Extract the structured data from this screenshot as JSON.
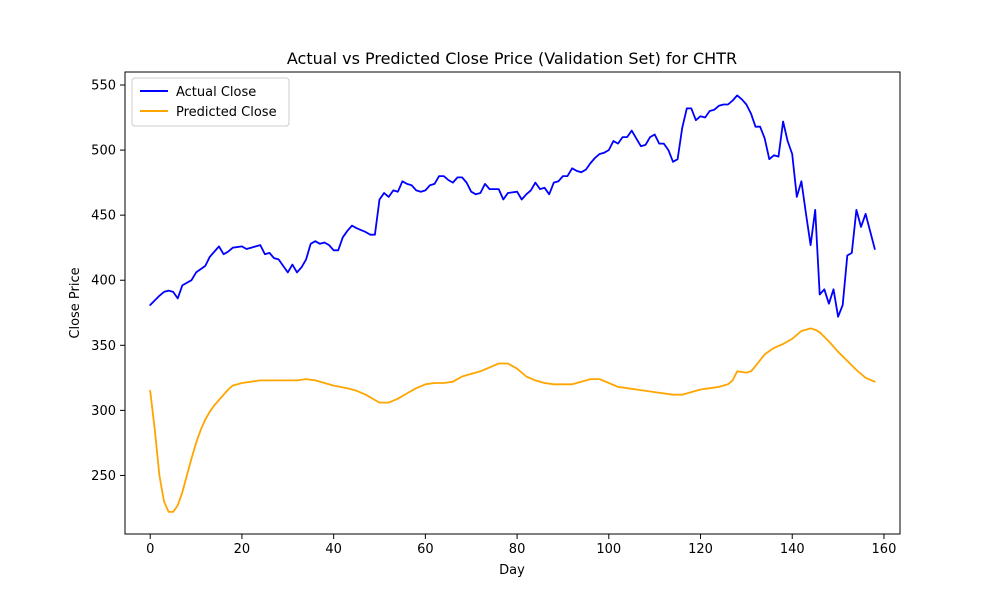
{
  "chart_data": {
    "type": "line",
    "title": "Actual vs Predicted Close Price (Validation Set) for CHTR",
    "xlabel": "Day",
    "ylabel": "Close Price",
    "xlim": [
      -5.5,
      163.5
    ],
    "ylim": [
      205,
      560
    ],
    "xticks": [
      "0",
      "20",
      "40",
      "60",
      "80",
      "100",
      "120",
      "140",
      "160"
    ],
    "yticks": [
      "250",
      "300",
      "350",
      "400",
      "450",
      "500",
      "550"
    ],
    "grid": false,
    "legend_position": "top-left",
    "series": [
      {
        "name": "Actual Close",
        "color": "#0000ff",
        "points": [
          [
            0,
            381
          ],
          [
            2,
            388
          ],
          [
            3,
            391
          ],
          [
            4,
            392
          ],
          [
            5,
            391
          ],
          [
            6,
            386
          ],
          [
            7,
            396
          ],
          [
            9,
            400
          ],
          [
            10,
            406
          ],
          [
            12,
            411
          ],
          [
            13,
            418
          ],
          [
            15,
            426
          ],
          [
            16,
            420
          ],
          [
            17,
            422
          ],
          [
            18,
            425
          ],
          [
            20,
            426
          ],
          [
            21,
            424
          ],
          [
            22,
            425
          ],
          [
            23,
            426
          ],
          [
            24,
            427
          ],
          [
            25,
            420
          ],
          [
            26,
            421
          ],
          [
            27,
            417
          ],
          [
            28,
            416
          ],
          [
            29,
            411
          ],
          [
            30,
            406
          ],
          [
            31,
            412
          ],
          [
            32,
            406
          ],
          [
            33,
            410
          ],
          [
            34,
            416
          ],
          [
            35,
            428
          ],
          [
            36,
            430
          ],
          [
            37,
            428
          ],
          [
            38,
            429
          ],
          [
            39,
            427
          ],
          [
            40,
            423
          ],
          [
            41,
            423
          ],
          [
            42,
            433
          ],
          [
            43,
            438
          ],
          [
            44,
            442
          ],
          [
            45,
            440
          ],
          [
            47,
            437
          ],
          [
            48,
            435
          ],
          [
            49,
            435
          ],
          [
            50,
            462
          ],
          [
            51,
            467
          ],
          [
            52,
            464
          ],
          [
            53,
            469
          ],
          [
            54,
            468
          ],
          [
            55,
            476
          ],
          [
            56,
            474
          ],
          [
            57,
            473
          ],
          [
            58,
            469
          ],
          [
            59,
            468
          ],
          [
            60,
            469
          ],
          [
            61,
            473
          ],
          [
            62,
            474
          ],
          [
            63,
            480
          ],
          [
            64,
            480
          ],
          [
            65,
            477
          ],
          [
            66,
            475
          ],
          [
            67,
            479
          ],
          [
            68,
            479
          ],
          [
            69,
            475
          ],
          [
            70,
            468
          ],
          [
            71,
            466
          ],
          [
            72,
            467
          ],
          [
            73,
            474
          ],
          [
            74,
            470
          ],
          [
            76,
            470
          ],
          [
            77,
            462
          ],
          [
            78,
            467
          ],
          [
            80,
            468
          ],
          [
            81,
            462
          ],
          [
            82,
            466
          ],
          [
            83,
            469
          ],
          [
            84,
            475
          ],
          [
            85,
            470
          ],
          [
            86,
            471
          ],
          [
            87,
            466
          ],
          [
            88,
            475
          ],
          [
            89,
            476
          ],
          [
            90,
            480
          ],
          [
            91,
            480
          ],
          [
            92,
            486
          ],
          [
            93,
            484
          ],
          [
            94,
            483
          ],
          [
            95,
            485
          ],
          [
            96,
            490
          ],
          [
            97,
            494
          ],
          [
            98,
            497
          ],
          [
            99,
            498
          ],
          [
            100,
            500
          ],
          [
            101,
            507
          ],
          [
            102,
            505
          ],
          [
            103,
            510
          ],
          [
            104,
            510
          ],
          [
            105,
            515
          ],
          [
            106,
            509
          ],
          [
            107,
            503
          ],
          [
            108,
            504
          ],
          [
            109,
            510
          ],
          [
            110,
            512
          ],
          [
            111,
            505
          ],
          [
            112,
            505
          ],
          [
            113,
            500
          ],
          [
            114,
            491
          ],
          [
            115,
            493
          ],
          [
            116,
            517
          ],
          [
            117,
            532
          ],
          [
            118,
            532
          ],
          [
            119,
            523
          ],
          [
            120,
            526
          ],
          [
            121,
            525
          ],
          [
            122,
            530
          ],
          [
            123,
            531
          ],
          [
            124,
            534
          ],
          [
            125,
            535
          ],
          [
            126,
            535
          ],
          [
            127,
            538
          ],
          [
            128,
            542
          ],
          [
            129,
            539
          ],
          [
            130,
            535
          ],
          [
            131,
            528
          ],
          [
            132,
            518
          ],
          [
            133,
            518
          ],
          [
            134,
            509
          ],
          [
            135,
            493
          ],
          [
            136,
            496
          ],
          [
            137,
            495
          ],
          [
            138,
            522
          ],
          [
            139,
            507
          ],
          [
            140,
            497
          ],
          [
            141,
            464
          ],
          [
            142,
            476
          ],
          [
            143,
            451
          ],
          [
            144,
            427
          ],
          [
            145,
            454
          ],
          [
            146,
            389
          ],
          [
            147,
            393
          ],
          [
            148,
            382
          ],
          [
            149,
            393
          ],
          [
            150,
            372
          ],
          [
            151,
            381
          ],
          [
            152,
            419
          ],
          [
            153,
            421
          ],
          [
            154,
            454
          ],
          [
            155,
            441
          ],
          [
            156,
            451
          ],
          [
            158,
            424
          ]
        ]
      },
      {
        "name": "Predicted Close",
        "color": "#ffa500",
        "points": [
          [
            0,
            315
          ],
          [
            1,
            285
          ],
          [
            2,
            250
          ],
          [
            3,
            230
          ],
          [
            4,
            222
          ],
          [
            5,
            222
          ],
          [
            6,
            227
          ],
          [
            7,
            237
          ],
          [
            8,
            250
          ],
          [
            9,
            263
          ],
          [
            10,
            275
          ],
          [
            11,
            285
          ],
          [
            12,
            293
          ],
          [
            13,
            299
          ],
          [
            14,
            304
          ],
          [
            15,
            308
          ],
          [
            16,
            312
          ],
          [
            17,
            316
          ],
          [
            18,
            319
          ],
          [
            20,
            321
          ],
          [
            22,
            322
          ],
          [
            24,
            323
          ],
          [
            26,
            323
          ],
          [
            28,
            323
          ],
          [
            30,
            323
          ],
          [
            32,
            323
          ],
          [
            34,
            324
          ],
          [
            36,
            323
          ],
          [
            38,
            321
          ],
          [
            40,
            319
          ],
          [
            43,
            317
          ],
          [
            45,
            315
          ],
          [
            47,
            312
          ],
          [
            49,
            308
          ],
          [
            50,
            306
          ],
          [
            52,
            306
          ],
          [
            54,
            309
          ],
          [
            56,
            313
          ],
          [
            58,
            317
          ],
          [
            60,
            320
          ],
          [
            62,
            321
          ],
          [
            64,
            321
          ],
          [
            66,
            322
          ],
          [
            68,
            326
          ],
          [
            70,
            328
          ],
          [
            72,
            330
          ],
          [
            74,
            333
          ],
          [
            76,
            336
          ],
          [
            78,
            336
          ],
          [
            80,
            332
          ],
          [
            82,
            326
          ],
          [
            84,
            323
          ],
          [
            86,
            321
          ],
          [
            88,
            320
          ],
          [
            90,
            320
          ],
          [
            92,
            320
          ],
          [
            94,
            322
          ],
          [
            96,
            324
          ],
          [
            98,
            324
          ],
          [
            100,
            321
          ],
          [
            102,
            318
          ],
          [
            104,
            317
          ],
          [
            106,
            316
          ],
          [
            110,
            314
          ],
          [
            114,
            312
          ],
          [
            116,
            312
          ],
          [
            118,
            314
          ],
          [
            120,
            316
          ],
          [
            122,
            317
          ],
          [
            124,
            318
          ],
          [
            126,
            320
          ],
          [
            127,
            323
          ],
          [
            128,
            330
          ],
          [
            130,
            329
          ],
          [
            131,
            330
          ],
          [
            132,
            334
          ],
          [
            134,
            343
          ],
          [
            136,
            348
          ],
          [
            138,
            351
          ],
          [
            140,
            355
          ],
          [
            142,
            361
          ],
          [
            144,
            363
          ],
          [
            145,
            362
          ],
          [
            146,
            360
          ],
          [
            148,
            353
          ],
          [
            150,
            345
          ],
          [
            152,
            338
          ],
          [
            154,
            331
          ],
          [
            156,
            325
          ],
          [
            158,
            322
          ]
        ]
      }
    ]
  }
}
